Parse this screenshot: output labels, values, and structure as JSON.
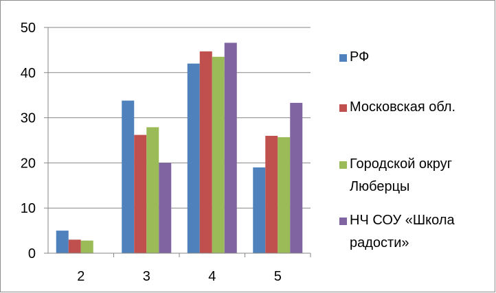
{
  "chart_data": {
    "type": "bar",
    "categories": [
      "2",
      "3",
      "4",
      "5"
    ],
    "series": [
      {
        "name": "РФ",
        "values": [
          5,
          33.8,
          42,
          19
        ],
        "color": "#4F81BD"
      },
      {
        "name": "Московская обл.",
        "values": [
          3,
          26.2,
          44.7,
          26
        ],
        "color": "#C0504D"
      },
      {
        "name": "Городской округ Люберцы",
        "values": [
          2.8,
          27.9,
          43.5,
          25.7
        ],
        "color": "#9BBB59"
      },
      {
        "name": "НЧ СОУ «Школа радости»",
        "values": [
          0,
          20,
          46.6,
          33.3
        ],
        "color": "#8064A2"
      }
    ],
    "legend_lines": [
      [
        "РФ"
      ],
      [
        "Московская обл."
      ],
      [
        "Городской округ",
        "Люберцы"
      ],
      [
        "НЧ СОУ «Школа",
        "радости»"
      ]
    ],
    "yticks": [
      "0",
      "10",
      "20",
      "30",
      "40",
      "50"
    ],
    "ylim": [
      0,
      50
    ],
    "grid": true,
    "legend_position": "right",
    "title": "",
    "xlabel": "",
    "ylabel": ""
  }
}
